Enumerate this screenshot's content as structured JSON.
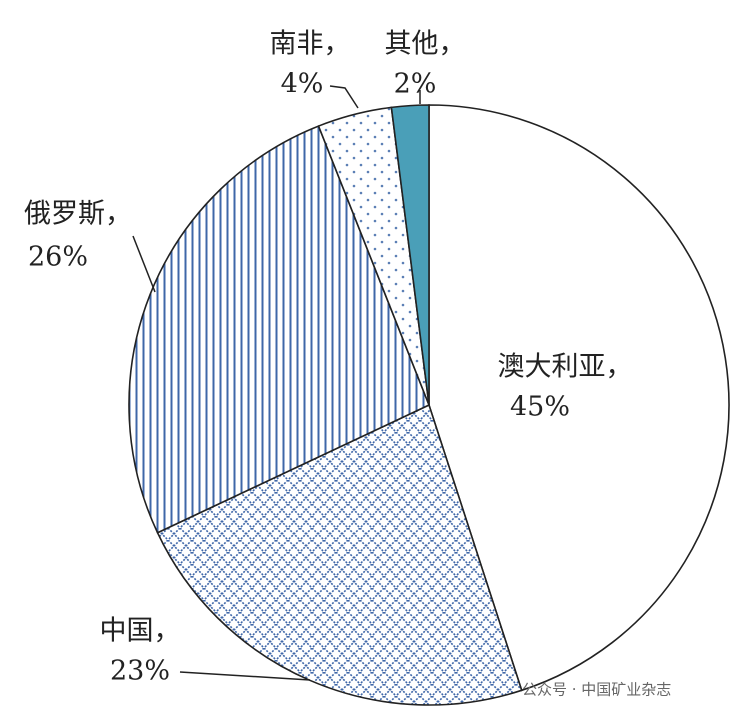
{
  "chart_data": {
    "type": "pie",
    "categories": [
      "澳大利亚，",
      "中国，",
      "俄罗斯，",
      "南非，",
      "其他，"
    ],
    "values": [
      45,
      23,
      26,
      4,
      2
    ],
    "value_labels": [
      "45%",
      "23%",
      "26%",
      "4%",
      "2%"
    ],
    "colors": [
      "#ffffff",
      "#3f67a8",
      "#3f67a8",
      "#5b7fb5",
      "#4a9fb8"
    ],
    "patterns": [
      "none",
      "crosshatch",
      "vertical-lines",
      "dots",
      "solid"
    ],
    "watermark": "公众号 · 中国矿业杂志"
  }
}
